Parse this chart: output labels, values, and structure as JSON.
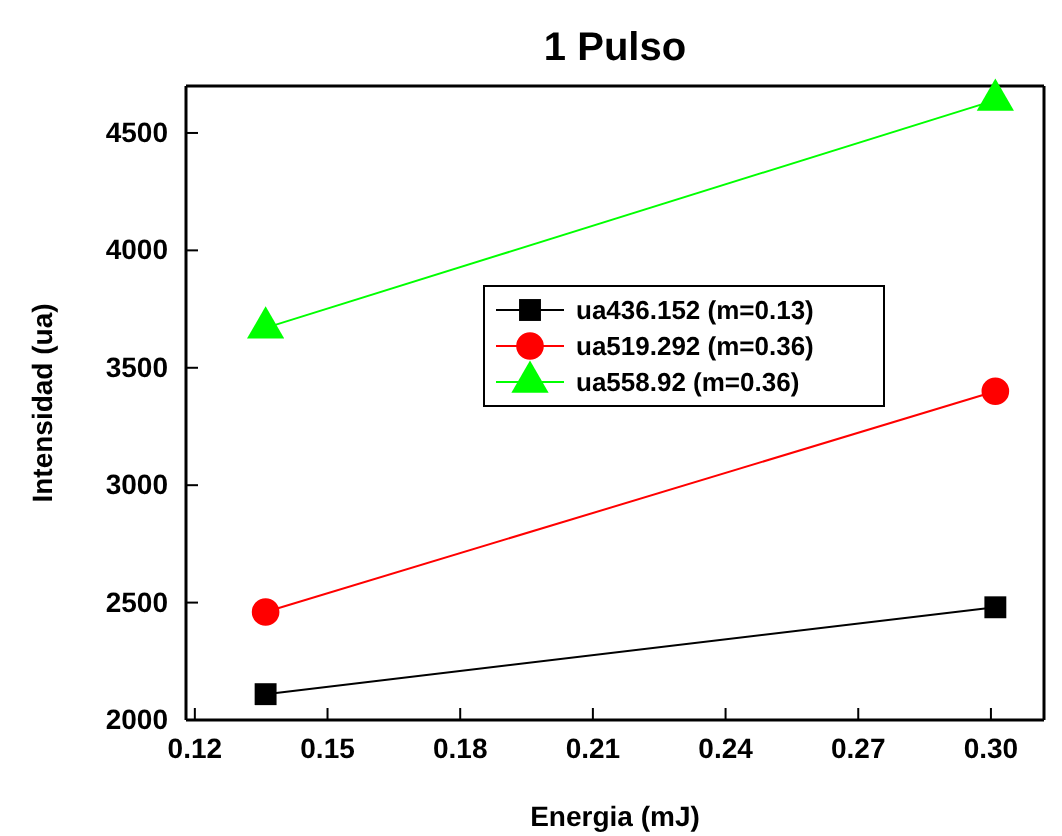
{
  "chart_data": {
    "type": "line",
    "title": "1 Pulso",
    "xlabel": "Energia (mJ)",
    "ylabel": "Intensidad (ua)",
    "x": [
      0.136,
      0.301
    ],
    "series": [
      {
        "name": "ua436.152 (m=0.13)",
        "color": "#000000",
        "marker": "square",
        "values": [
          2110,
          2480
        ]
      },
      {
        "name": "ua519.292 (m=0.36)",
        "color": "#ff0000",
        "marker": "circle",
        "values": [
          2460,
          3400
        ]
      },
      {
        "name": "ua558.92 (m=0.36)",
        "color": "#00ff00",
        "marker": "triangle",
        "values": [
          3670,
          4640
        ]
      }
    ],
    "xlim": [
      0.118,
      0.312
    ],
    "xticks": [
      {
        "value": 0.12,
        "label": "0.12"
      },
      {
        "value": 0.15,
        "label": "0.15"
      },
      {
        "value": 0.18,
        "label": "0.18"
      },
      {
        "value": 0.21,
        "label": "0.21"
      },
      {
        "value": 0.24,
        "label": "0.24"
      },
      {
        "value": 0.27,
        "label": "0.27"
      },
      {
        "value": 0.3,
        "label": "0.30"
      }
    ],
    "ylim": [
      2000,
      4700
    ],
    "yticks": [
      2000,
      2500,
      3000,
      3500,
      4000,
      4500
    ],
    "grid": false,
    "legend": "center",
    "line_style": "solid"
  }
}
